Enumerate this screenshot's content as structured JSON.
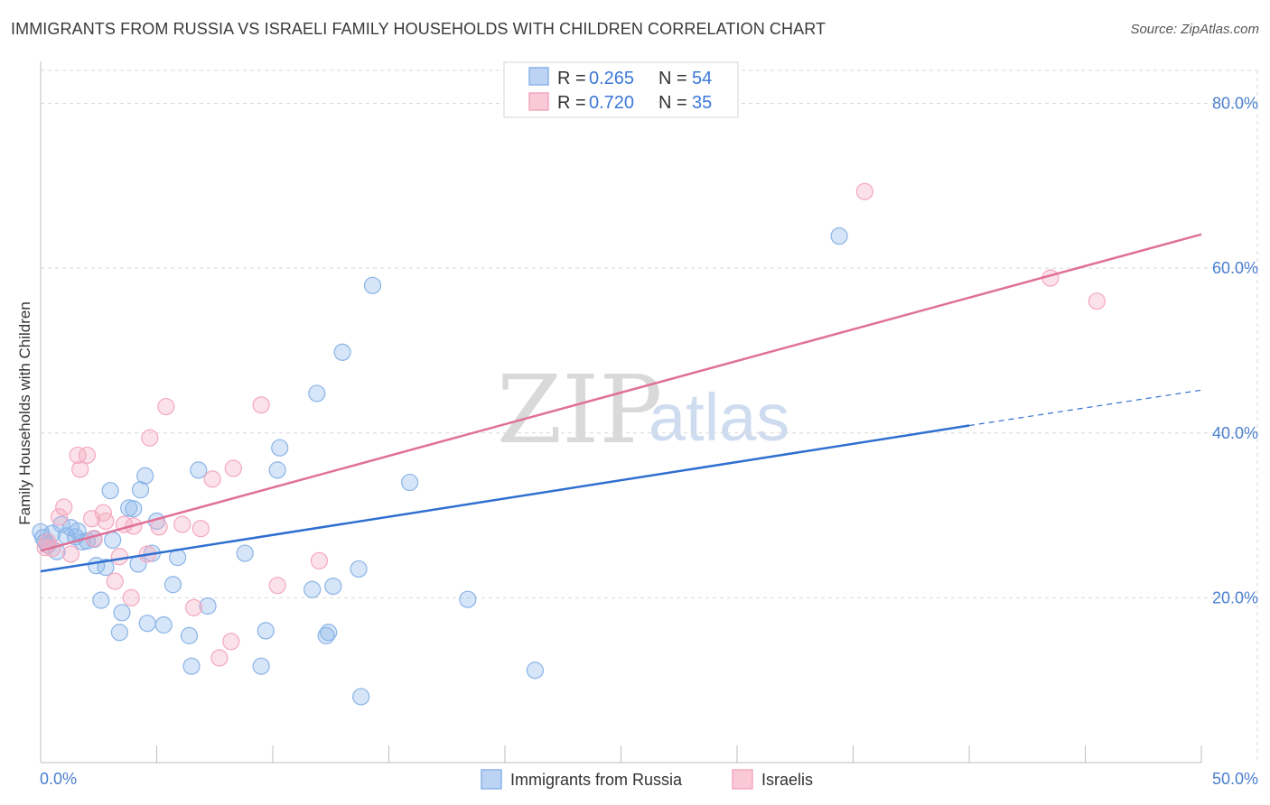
{
  "title": "IMMIGRANTS FROM RUSSIA VS ISRAELI FAMILY HOUSEHOLDS WITH CHILDREN CORRELATION CHART",
  "source": "Source: ZipAtlas.com",
  "watermark": {
    "zip": "ZIP",
    "atlas": "atlas"
  },
  "legend": {
    "r_label": "R =",
    "n_label": "N =",
    "rows": [
      {
        "r": "0.265",
        "n": "54"
      },
      {
        "r": "0.720",
        "n": "35"
      }
    ]
  },
  "chart_data": {
    "type": "scatter",
    "title": "IMMIGRANTS FROM RUSSIA VS ISRAELI FAMILY HOUSEHOLDS WITH CHILDREN CORRELATION CHART",
    "xlabel": "",
    "ylabel": "Family Households with Children",
    "xlim": [
      0,
      50
    ],
    "ylim": [
      0,
      84
    ],
    "x_tick_labels": [
      "0.0%",
      "50.0%"
    ],
    "y_ticks": [
      20,
      40,
      60,
      80
    ],
    "y_tick_labels": [
      "20.0%",
      "40.0%",
      "60.0%",
      "80.0%"
    ],
    "colors": {
      "russia": "#8ab4e8",
      "russia_line": "#2f6fd0",
      "israelis": "#f4a8bf",
      "israelis_line": "#e07098",
      "axis_text": "#4a7fd0"
    },
    "series": [
      {
        "name": "Immigrants from Russia",
        "r": 0.265,
        "n": 54,
        "trend": {
          "x0": 0,
          "y0": 23.2,
          "x1": 40,
          "y1": 40.9,
          "dash_x1": 50,
          "dash_y1": 45.2
        },
        "points": [
          [
            0.1,
            27.3
          ],
          [
            0.2,
            26.8
          ],
          [
            0.3,
            26.4
          ],
          [
            0.5,
            27.8
          ],
          [
            0.7,
            25.6
          ],
          [
            0.9,
            28.9
          ],
          [
            1.1,
            27.5
          ],
          [
            1.3,
            28.5
          ],
          [
            1.5,
            27.4
          ],
          [
            1.6,
            28.1
          ],
          [
            1.8,
            26.8
          ],
          [
            2.0,
            26.9
          ],
          [
            2.3,
            27.1
          ],
          [
            2.4,
            23.9
          ],
          [
            2.6,
            19.7
          ],
          [
            2.8,
            23.7
          ],
          [
            3.0,
            33.0
          ],
          [
            3.1,
            27.0
          ],
          [
            3.4,
            15.8
          ],
          [
            3.5,
            18.2
          ],
          [
            3.8,
            30.9
          ],
          [
            4.0,
            30.8
          ],
          [
            4.2,
            24.1
          ],
          [
            4.3,
            33.1
          ],
          [
            4.5,
            34.8
          ],
          [
            4.6,
            16.9
          ],
          [
            4.8,
            25.4
          ],
          [
            5.0,
            29.3
          ],
          [
            5.3,
            16.7
          ],
          [
            5.7,
            21.6
          ],
          [
            5.9,
            24.9
          ],
          [
            6.4,
            15.4
          ],
          [
            6.5,
            11.7
          ],
          [
            6.8,
            35.5
          ],
          [
            7.2,
            19.0
          ],
          [
            8.8,
            25.4
          ],
          [
            9.5,
            11.7
          ],
          [
            9.7,
            16.0
          ],
          [
            10.2,
            35.5
          ],
          [
            10.3,
            38.2
          ],
          [
            11.7,
            21.0
          ],
          [
            11.9,
            44.8
          ],
          [
            12.3,
            15.4
          ],
          [
            12.4,
            15.8
          ],
          [
            12.6,
            21.4
          ],
          [
            13.0,
            49.8
          ],
          [
            13.7,
            23.5
          ],
          [
            13.8,
            8.0
          ],
          [
            14.3,
            57.9
          ],
          [
            15.9,
            34.0
          ],
          [
            18.4,
            19.8
          ],
          [
            21.3,
            11.2
          ],
          [
            34.4,
            63.9
          ],
          [
            0.0,
            28.0
          ]
        ]
      },
      {
        "name": "Israelis",
        "r": 0.72,
        "n": 35,
        "trend": {
          "x0": 0,
          "y0": 25.7,
          "x1": 50,
          "y1": 64.1
        },
        "points": [
          [
            0.2,
            26.1
          ],
          [
            0.3,
            26.8
          ],
          [
            0.5,
            26.0
          ],
          [
            0.8,
            29.8
          ],
          [
            1.0,
            31.0
          ],
          [
            1.3,
            25.3
          ],
          [
            1.6,
            37.3
          ],
          [
            1.7,
            35.6
          ],
          [
            2.0,
            37.3
          ],
          [
            2.2,
            29.6
          ],
          [
            2.3,
            27.2
          ],
          [
            2.7,
            30.3
          ],
          [
            2.8,
            29.3
          ],
          [
            3.2,
            22.0
          ],
          [
            3.4,
            25.0
          ],
          [
            3.6,
            28.9
          ],
          [
            3.9,
            20.0
          ],
          [
            4.0,
            28.7
          ],
          [
            4.6,
            25.3
          ],
          [
            4.7,
            39.4
          ],
          [
            5.1,
            28.6
          ],
          [
            5.4,
            43.2
          ],
          [
            6.1,
            28.9
          ],
          [
            6.6,
            18.8
          ],
          [
            6.9,
            28.4
          ],
          [
            7.4,
            34.4
          ],
          [
            7.7,
            12.7
          ],
          [
            8.2,
            14.7
          ],
          [
            8.3,
            35.7
          ],
          [
            9.5,
            43.4
          ],
          [
            10.2,
            21.5
          ],
          [
            12.0,
            24.5
          ],
          [
            35.5,
            69.3
          ],
          [
            43.5,
            58.8
          ],
          [
            45.5,
            56.0
          ]
        ]
      }
    ]
  }
}
